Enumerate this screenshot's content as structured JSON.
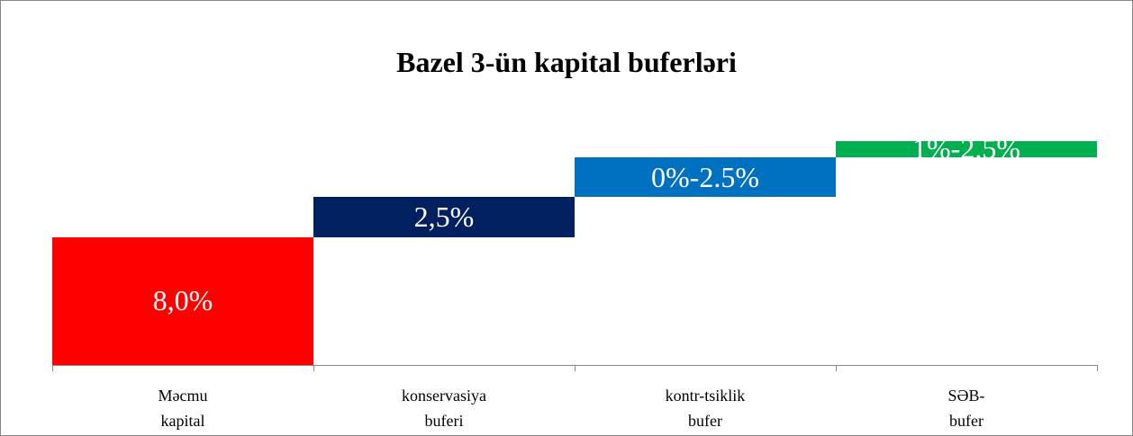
{
  "chart_data": {
    "type": "waterfall",
    "title": "Bazel 3-ün kapital buferləri",
    "categories": [
      "Məcmu\nkapital",
      "konservasiya\nbuferi",
      "kontr-tsiklik\nbufer",
      "SƏB-\nbufer"
    ],
    "values": [
      8,
      2.5,
      2.5,
      1
    ],
    "value_labels": [
      "8,0%",
      "2,5%",
      "0%-2.5%",
      "1%-2.5%"
    ],
    "colors": [
      "#ff0000",
      "#002060",
      "#0070c0",
      "#00b050"
    ]
  }
}
